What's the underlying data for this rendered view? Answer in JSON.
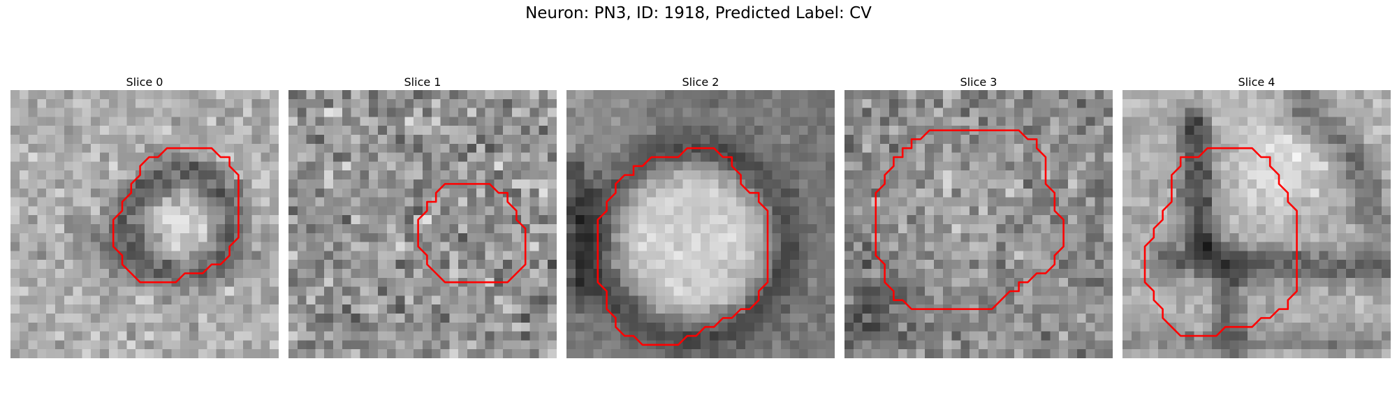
{
  "figure": {
    "title": "Neuron: PN3, ID: 1918, Predicted Label: CV",
    "contour_color": "#ff0000"
  },
  "slices": [
    {
      "label": "Slice 0",
      "image": "grayscale microscopy crop: dark ring around a bright round body, contour traced on the ring",
      "contour": [
        [
          17.5,
          6.5
        ],
        [
          22.5,
          6.5
        ],
        [
          23.5,
          7.5
        ],
        [
          24.5,
          7.5
        ],
        [
          24.5,
          8.5
        ],
        [
          25.5,
          9.5
        ],
        [
          25.5,
          16.5
        ],
        [
          24.5,
          17.5
        ],
        [
          24.5,
          18.5
        ],
        [
          23.5,
          19.5
        ],
        [
          22.5,
          19.5
        ],
        [
          21.5,
          20.5
        ],
        [
          19.5,
          20.5
        ],
        [
          18.5,
          21.5
        ],
        [
          16.5,
          21.5
        ],
        [
          15.5,
          21.5
        ],
        [
          14.5,
          21.5
        ],
        [
          13.5,
          20.5
        ],
        [
          12.5,
          19.5
        ],
        [
          12.5,
          18.5
        ],
        [
          11.5,
          17.5
        ],
        [
          11.5,
          14.5
        ],
        [
          12.5,
          13.5
        ],
        [
          12.5,
          12.5
        ],
        [
          13.5,
          11.5
        ],
        [
          13.5,
          10.5
        ],
        [
          14.5,
          9.5
        ],
        [
          14.5,
          8.5
        ],
        [
          15.5,
          7.5
        ],
        [
          16.5,
          7.5
        ]
      ]
    },
    {
      "label": "Slice 1",
      "image": "grayscale microscopy crop: noisy texture, contour on lower-right region",
      "contour": [
        [
          17.5,
          10.5
        ],
        [
          22.5,
          10.5
        ],
        [
          23.5,
          11.5
        ],
        [
          24.5,
          11.5
        ],
        [
          24.5,
          12.5
        ],
        [
          25.5,
          13.5
        ],
        [
          25.5,
          14.5
        ],
        [
          26.5,
          15.5
        ],
        [
          26.5,
          19.5
        ],
        [
          25.5,
          20.5
        ],
        [
          24.5,
          21.5
        ],
        [
          23.5,
          21.5
        ],
        [
          22.5,
          21.5
        ],
        [
          18.5,
          21.5
        ],
        [
          17.5,
          21.5
        ],
        [
          16.5,
          20.5
        ],
        [
          15.5,
          19.5
        ],
        [
          15.5,
          18.5
        ],
        [
          14.5,
          17.5
        ],
        [
          14.5,
          15.5
        ],
        [
          14.5,
          14.5
        ],
        [
          15.5,
          13.5
        ],
        [
          15.5,
          12.5
        ],
        [
          16.5,
          12.5
        ],
        [
          16.5,
          11.5
        ]
      ]
    },
    {
      "label": "Slice 2",
      "image": "grayscale microscopy crop: large bright circular cell body, contour around its edge",
      "contour": [
        [
          13.5,
          6.5
        ],
        [
          16.5,
          6.5
        ],
        [
          17.5,
          7.5
        ],
        [
          18.5,
          7.5
        ],
        [
          18.5,
          8.5
        ],
        [
          19.5,
          9.5
        ],
        [
          19.5,
          10.5
        ],
        [
          20.5,
          11.5
        ],
        [
          21.5,
          11.5
        ],
        [
          21.5,
          12.5
        ],
        [
          22.5,
          13.5
        ],
        [
          22.5,
          21.5
        ],
        [
          21.5,
          22.5
        ],
        [
          21.5,
          23.5
        ],
        [
          20.5,
          24.5
        ],
        [
          19.5,
          24.5
        ],
        [
          18.5,
          25.5
        ],
        [
          17.5,
          25.5
        ],
        [
          16.5,
          26.5
        ],
        [
          15.5,
          26.5
        ],
        [
          14.5,
          27.5
        ],
        [
          13.5,
          27.5
        ],
        [
          12.5,
          28.5
        ],
        [
          8.5,
          28.5
        ],
        [
          7.5,
          27.5
        ],
        [
          6.5,
          27.5
        ],
        [
          5.5,
          26.5
        ],
        [
          5.5,
          25.5
        ],
        [
          4.5,
          24.5
        ],
        [
          4.5,
          22.5
        ],
        [
          3.5,
          21.5
        ],
        [
          3.5,
          14.5
        ],
        [
          4.5,
          13.5
        ],
        [
          4.5,
          12.5
        ],
        [
          5.5,
          11.5
        ],
        [
          5.5,
          10.5
        ],
        [
          6.5,
          9.5
        ],
        [
          7.5,
          9.5
        ],
        [
          7.5,
          8.5
        ],
        [
          8.5,
          8.5
        ],
        [
          9.5,
          7.5
        ],
        [
          10.5,
          7.5
        ],
        [
          11.5,
          7.5
        ],
        [
          12.5,
          7.5
        ]
      ]
    },
    {
      "label": "Slice 3",
      "image": "grayscale microscopy crop: noisy textured region, large contour spanning the center",
      "contour": [
        [
          9.5,
          4.5
        ],
        [
          19.5,
          4.5
        ],
        [
          20.5,
          5.5
        ],
        [
          21.5,
          5.5
        ],
        [
          21.5,
          6.5
        ],
        [
          22.5,
          7.5
        ],
        [
          22.5,
          10.5
        ],
        [
          23.5,
          11.5
        ],
        [
          23.5,
          13.5
        ],
        [
          24.5,
          14.5
        ],
        [
          24.5,
          17.5
        ],
        [
          23.5,
          18.5
        ],
        [
          23.5,
          19.5
        ],
        [
          22.5,
          20.5
        ],
        [
          21.5,
          20.5
        ],
        [
          20.5,
          21.5
        ],
        [
          19.5,
          21.5
        ],
        [
          19.5,
          22.5
        ],
        [
          18.5,
          22.5
        ],
        [
          17.5,
          23.5
        ],
        [
          16.5,
          24.5
        ],
        [
          15.5,
          24.5
        ],
        [
          7.5,
          24.5
        ],
        [
          6.5,
          23.5
        ],
        [
          5.5,
          23.5
        ],
        [
          5.5,
          22.5
        ],
        [
          4.5,
          21.5
        ],
        [
          4.5,
          19.5
        ],
        [
          3.5,
          18.5
        ],
        [
          3.5,
          17.5
        ],
        [
          3.5,
          11.5
        ],
        [
          4.5,
          10.5
        ],
        [
          4.5,
          9.5
        ],
        [
          5.5,
          8.5
        ],
        [
          5.5,
          7.5
        ],
        [
          6.5,
          7.5
        ],
        [
          6.5,
          6.5
        ],
        [
          7.5,
          6.5
        ],
        [
          7.5,
          5.5
        ],
        [
          8.5,
          5.5
        ]
      ]
    },
    {
      "label": "Slice 4",
      "image": "grayscale microscopy crop: bright blobs separated by dark membranes, contour on left cell",
      "contour": [
        [
          9.5,
          6.5
        ],
        [
          14.5,
          6.5
        ],
        [
          15.5,
          7.5
        ],
        [
          16.5,
          7.5
        ],
        [
          16.5,
          8.5
        ],
        [
          17.5,
          9.5
        ],
        [
          17.5,
          10.5
        ],
        [
          18.5,
          11.5
        ],
        [
          18.5,
          12.5
        ],
        [
          19.5,
          13.5
        ],
        [
          19.5,
          22.5
        ],
        [
          18.5,
          23.5
        ],
        [
          18.5,
          24.5
        ],
        [
          17.5,
          24.5
        ],
        [
          16.5,
          25.5
        ],
        [
          15.5,
          25.5
        ],
        [
          14.5,
          26.5
        ],
        [
          13.5,
          26.5
        ],
        [
          12.5,
          26.5
        ],
        [
          11.5,
          26.5
        ],
        [
          10.5,
          27.5
        ],
        [
          6.5,
          27.5
        ],
        [
          5.5,
          26.5
        ],
        [
          4.5,
          25.5
        ],
        [
          4.5,
          24.5
        ],
        [
          3.5,
          23.5
        ],
        [
          3.5,
          22.5
        ],
        [
          2.5,
          21.5
        ],
        [
          2.5,
          17.5
        ],
        [
          3.5,
          16.5
        ],
        [
          3.5,
          15.5
        ],
        [
          4.5,
          14.5
        ],
        [
          4.5,
          13.5
        ],
        [
          5.5,
          12.5
        ],
        [
          5.5,
          9.5
        ],
        [
          6.5,
          8.5
        ],
        [
          6.5,
          7.5
        ],
        [
          7.5,
          7.5
        ],
        [
          8.5,
          7.5
        ]
      ]
    }
  ]
}
